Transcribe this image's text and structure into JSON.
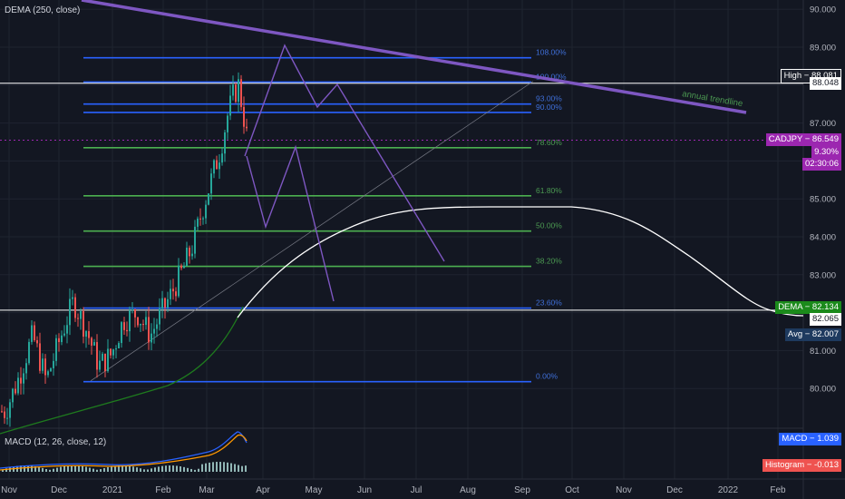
{
  "chart_data": {
    "type": "candlestick",
    "symbol": "CADJPY",
    "indicator_main": "DEMA (250, close)",
    "indicator_lower": "MACD (12, 26, close, 12)",
    "yaxis": {
      "ticks": [
        "90.000",
        "89.000",
        "88.000",
        "87.000",
        "86.000",
        "85.000",
        "84.000",
        "83.000",
        "82.000",
        "81.000",
        "80.000"
      ],
      "range": [
        79.0,
        90.2
      ]
    },
    "xaxis": {
      "ticks": [
        "Nov",
        "Dec",
        "2021",
        "Feb",
        "Mar",
        "Apr",
        "May",
        "Jun",
        "Jul",
        "Aug",
        "Sep",
        "Oct",
        "Nov",
        "Dec",
        "2022",
        "Feb"
      ]
    },
    "fib_levels": [
      {
        "label": "108.00%",
        "price": 88.72,
        "color": "#2962ff"
      },
      {
        "label": "100.00%",
        "price": 88.08,
        "color": "#2962ff"
      },
      {
        "label": "93.00%",
        "price": 87.5,
        "color": "#2962ff"
      },
      {
        "label": "90.00%",
        "price": 87.28,
        "color": "#2962ff"
      },
      {
        "label": "78.60%",
        "price": 86.35,
        "color": "#4caf50"
      },
      {
        "label": "61.80%",
        "price": 85.08,
        "color": "#4caf50"
      },
      {
        "label": "50.00%",
        "price": 84.15,
        "color": "#4caf50"
      },
      {
        "label": "38.20%",
        "price": 83.22,
        "color": "#4caf50"
      },
      {
        "label": "23.60%",
        "price": 82.12,
        "color": "#2962ff"
      },
      {
        "label": "0.00%",
        "price": 80.18,
        "color": "#2962ff"
      }
    ],
    "annotations": {
      "trendline_label": "annual trendline"
    },
    "price_tags": [
      {
        "text": "High − 88.081",
        "price": 88.26,
        "bg": "#1e222d",
        "border": "#ffffff"
      },
      {
        "text": "88.048",
        "price": 88.048,
        "bg": "#ffffff",
        "fg": "#131722"
      },
      {
        "text": "CADJPY − 86.549",
        "price": 86.549,
        "bg": "#9c27b0"
      },
      {
        "text": "9.30%",
        "price": 86.23,
        "bg": "#9c27b0"
      },
      {
        "text": "02:30:06",
        "price": 85.92,
        "bg": "#9c27b0"
      },
      {
        "text": "DEMA − 82.134",
        "price": 82.134,
        "bg": "#1b8a1b"
      },
      {
        "text": "82.065",
        "price": 81.83,
        "bg": "#ffffff",
        "fg": "#131722"
      },
      {
        "text": "Avg − 82.007",
        "price": 81.42,
        "bg": "#1e3a5f"
      },
      {
        "text": "MACD − 1.039",
        "y": 484,
        "bg": "#2962ff"
      },
      {
        "text": "Histogram − -0.013",
        "y": 513,
        "bg": "#ef5350"
      }
    ]
  }
}
